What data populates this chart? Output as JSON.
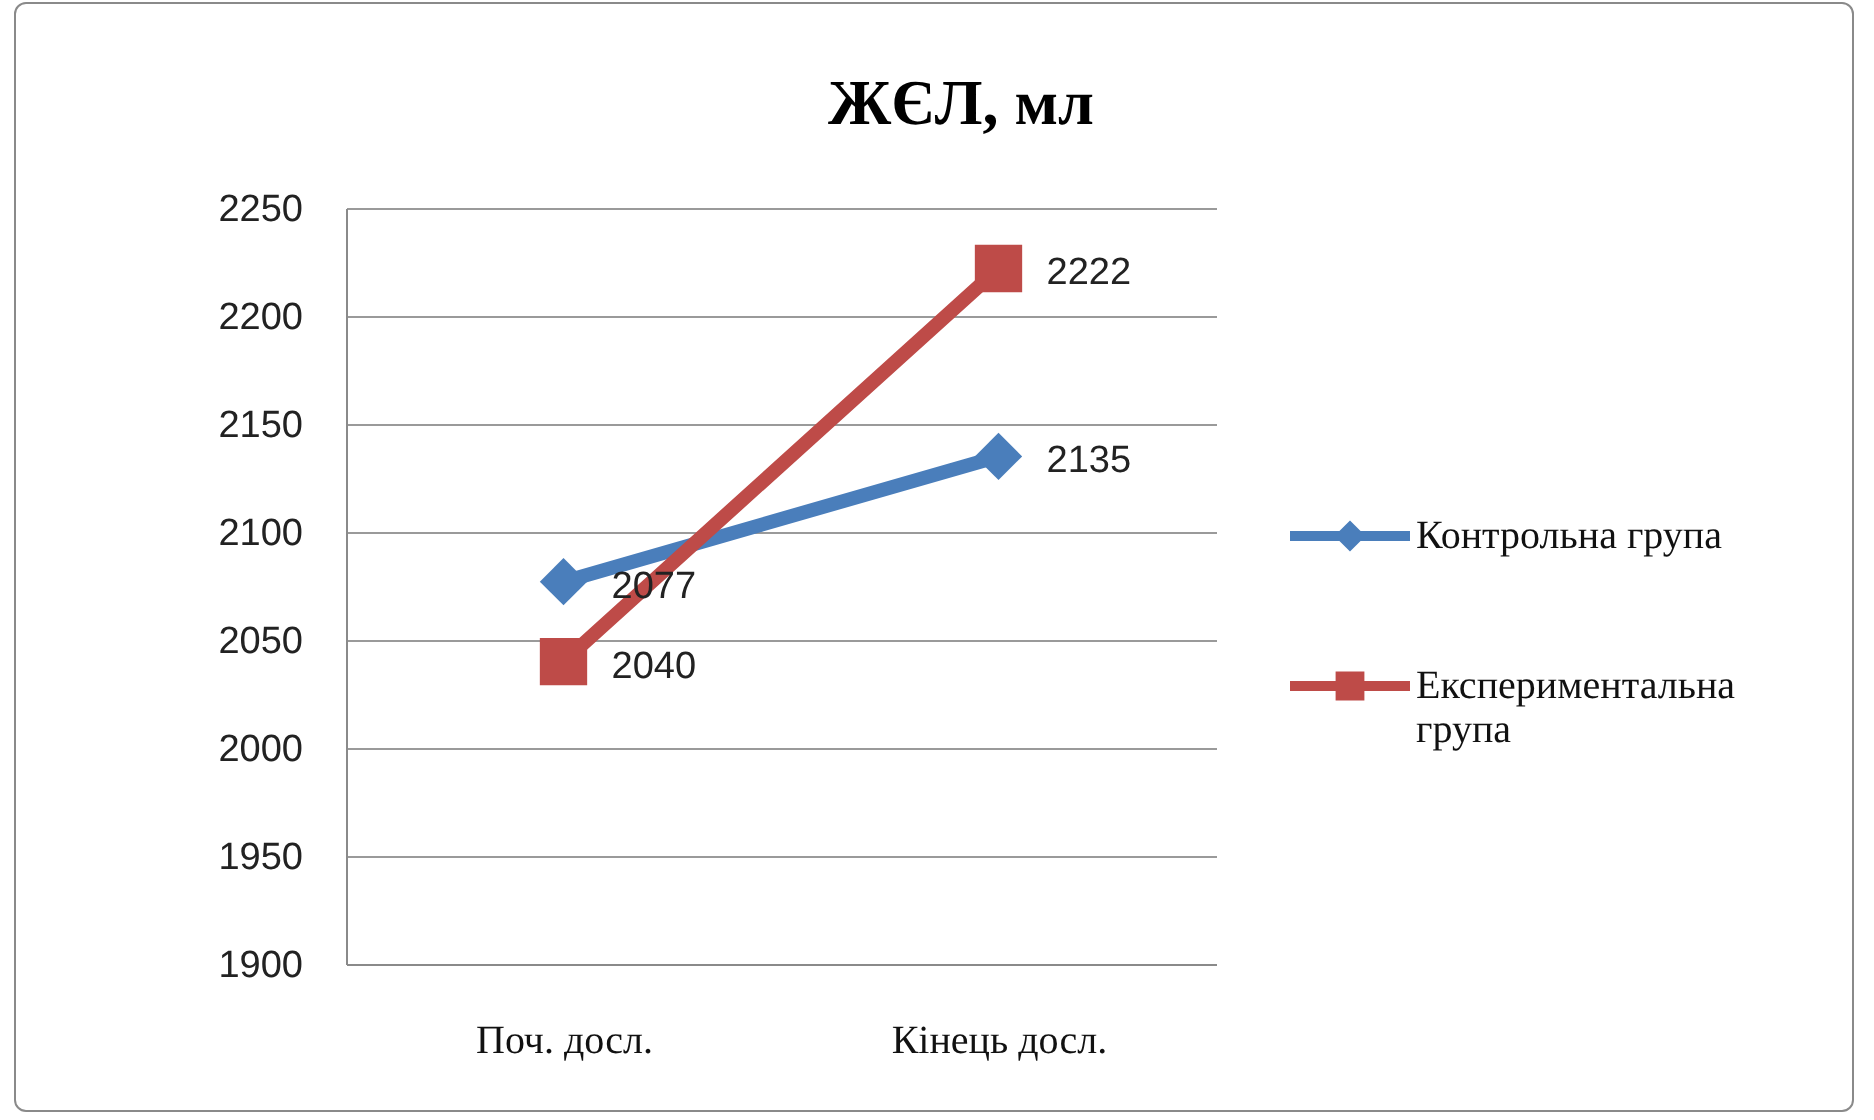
{
  "chart_data": {
    "type": "line",
    "title": "ЖЄЛ, мл",
    "categories": [
      "Поч. досл.",
      "Кінець досл."
    ],
    "series": [
      {
        "name": "Контрольна група",
        "color": "#4a7ebb",
        "values": [
          2077,
          2135
        ],
        "marker": "diamond"
      },
      {
        "name": "Експериментальна група",
        "color": "#be4b48",
        "values": [
          2040,
          2222
        ],
        "marker": "square"
      }
    ],
    "ylim": [
      1900,
      2250
    ],
    "yticks": [
      1900,
      1950,
      2000,
      2050,
      2100,
      2150,
      2200,
      2250
    ],
    "grid": "y",
    "legend": "right",
    "data_labels": true,
    "line_style": "solid"
  }
}
